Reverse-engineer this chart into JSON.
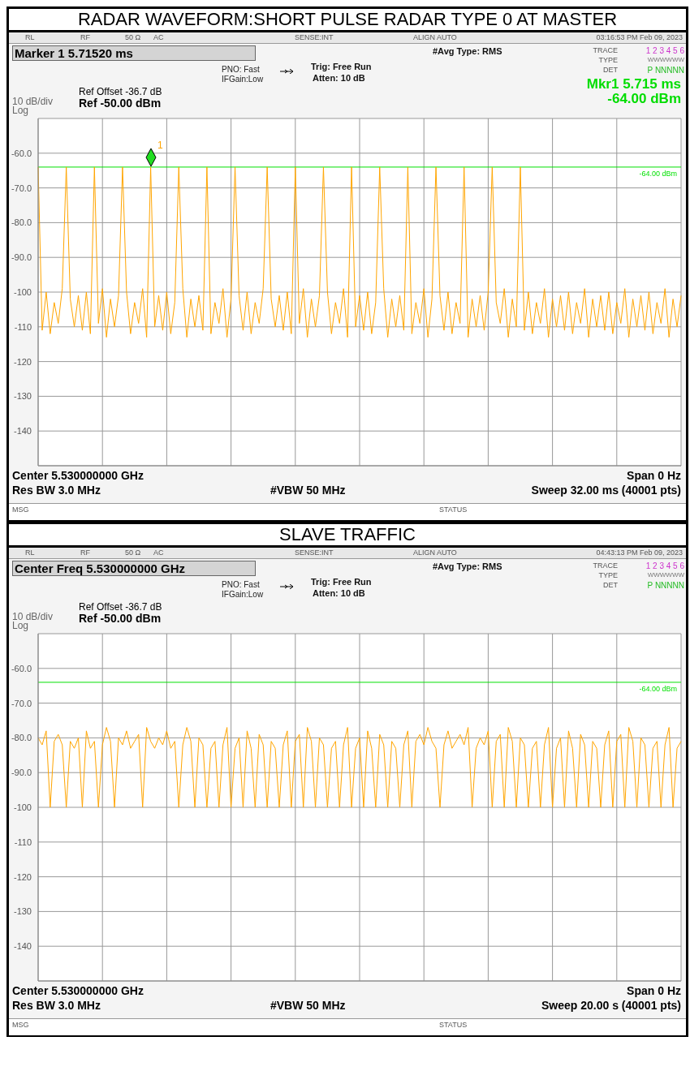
{
  "chart_data": [
    {
      "type": "line",
      "title": "RADAR WAVEFORM:SHORT PULSE RADAR TYPE 0 AT MASTER",
      "categories": [
        null,
        null,
        null,
        null,
        null,
        null,
        null,
        null,
        null,
        null,
        null,
        null,
        null,
        null,
        null,
        null,
        null,
        null,
        null,
        null,
        null,
        null,
        null,
        null,
        null,
        null,
        null,
        null,
        null,
        null,
        null,
        null,
        null,
        null,
        null,
        null,
        null,
        null,
        null,
        null,
        null,
        null,
        null,
        null,
        null,
        null,
        null,
        null,
        null,
        null,
        null,
        null,
        null,
        null,
        null,
        null,
        null,
        null,
        null,
        null,
        null,
        null,
        null,
        null,
        null,
        null,
        null,
        null,
        null,
        null,
        null,
        null,
        null,
        null,
        null,
        null,
        null,
        null,
        null,
        null,
        null,
        null,
        null,
        null,
        null,
        null,
        null,
        null,
        null,
        null,
        null,
        null,
        null,
        null,
        null,
        null,
        null,
        null,
        null,
        null,
        null,
        null,
        null,
        null,
        null,
        null,
        null,
        null,
        null,
        null,
        null,
        null,
        null,
        null,
        null,
        null,
        null,
        null,
        null,
        null,
        null,
        null,
        null,
        null,
        null,
        null,
        null,
        null,
        null,
        null,
        null,
        null,
        null,
        null,
        null,
        null,
        null,
        null,
        null,
        null,
        null,
        null,
        null,
        null,
        null,
        null,
        null,
        null,
        null,
        null,
        null,
        null,
        null,
        null,
        null,
        null,
        null,
        null,
        null,
        null,
        null
      ],
      "series": [
        {
          "color": "#ffa500",
          "values": [
            -64,
            -111,
            -100,
            -112,
            -103,
            -109,
            -99,
            -64,
            -102,
            -110,
            -101,
            -111,
            -100,
            -112,
            -64,
            -109,
            -99,
            -113,
            -102,
            -110,
            -101,
            -64,
            -100,
            -112,
            -103,
            -109,
            -99,
            -113,
            -64,
            -110,
            -101,
            -111,
            -100,
            -112,
            -103,
            -64,
            -99,
            -113,
            -102,
            -110,
            -101,
            -111,
            -64,
            -112,
            -103,
            -109,
            -99,
            -113,
            -102,
            -64,
            -101,
            -111,
            -100,
            -112,
            -103,
            -109,
            -99,
            -64,
            -102,
            -110,
            -101,
            -111,
            -100,
            -112,
            -64,
            -109,
            -99,
            -113,
            -102,
            -110,
            -101,
            -64,
            -100,
            -112,
            -103,
            -109,
            -99,
            -113,
            -64,
            -110,
            -101,
            -111,
            -100,
            -112,
            -103,
            -64,
            -99,
            -113,
            -102,
            -110,
            -101,
            -111,
            -64,
            -112,
            -103,
            -109,
            -99,
            -113,
            -102,
            -64,
            -101,
            -111,
            -100,
            -112,
            -103,
            -109,
            -64,
            -113,
            -102,
            -110,
            -101,
            -111,
            -100,
            -64,
            -103,
            -109,
            -99,
            -113,
            -102,
            -110,
            -64,
            -111,
            -100,
            -112,
            -103,
            -109,
            -99,
            -113,
            -102,
            -110,
            -101,
            -111,
            -100,
            -112,
            -103,
            -109,
            -99,
            -113,
            -102,
            -110,
            -101,
            -111,
            -100,
            -112,
            -103,
            -109,
            -99,
            -113,
            -102,
            -110,
            -101,
            -111,
            -100,
            -112,
            -103,
            -109,
            -99,
            -113,
            -102,
            -110,
            -101
          ]
        }
      ],
      "ylim": [
        -150,
        -50
      ],
      "yticks": [
        {
          "value": -50,
          "label": null
        },
        {
          "value": -60,
          "label": "-60.0"
        },
        {
          "value": -70,
          "label": "-70.0"
        },
        {
          "value": -80,
          "label": "-80.0"
        },
        {
          "value": -90,
          "label": "-90.0"
        },
        -100,
        -110,
        -120,
        -130,
        -140,
        {
          "value": -150,
          "label": null
        }
      ],
      "tick_labels": "y",
      "grid": true,
      "ref_lines": [
        {
          "axis": "y",
          "value": -64,
          "label": "-64.00 dBm",
          "color": "#00e000"
        }
      ],
      "annotations": [
        "RL",
        "RF",
        "50 Ω",
        "AC",
        "SENSE:INT",
        "ALIGN AUTO",
        "03:16:53 PM Feb 09, 2023",
        "Marker 1 5.71520 ms",
        "PNO: Fast",
        "IFGain:Low",
        "Trig: Free Run",
        "Atten: 10 dB",
        "#Avg Type: RMS",
        "TRACE",
        "1 2 3 4 5 6",
        "TYPE",
        "WWWWWW",
        "DET",
        "P NNNNN",
        "Ref Offset -36.7 dB",
        "Ref -50.00 dBm",
        "10 dB/div",
        "Log",
        "Mkr1 5.715 ms",
        "-64.00 dBm",
        "Center 5.530000000 GHz",
        "Span 0 Hz",
        "Res BW 3.0 MHz",
        "#VBW 50 MHz",
        "Sweep  32.00 ms (40001 pts)",
        "MSG",
        "STATUS",
        "1"
      ]
    },
    {
      "type": "line",
      "title": "SLAVE TRAFFIC",
      "categories": [
        null,
        null,
        null,
        null,
        null,
        null,
        null,
        null,
        null,
        null,
        null,
        null,
        null,
        null,
        null,
        null,
        null,
        null,
        null,
        null,
        null,
        null,
        null,
        null,
        null,
        null,
        null,
        null,
        null,
        null,
        null,
        null,
        null,
        null,
        null,
        null,
        null,
        null,
        null,
        null,
        null,
        null,
        null,
        null,
        null,
        null,
        null,
        null,
        null,
        null,
        null,
        null,
        null,
        null,
        null,
        null,
        null,
        null,
        null,
        null,
        null,
        null,
        null,
        null,
        null,
        null,
        null,
        null,
        null,
        null,
        null,
        null,
        null,
        null,
        null,
        null,
        null,
        null,
        null,
        null,
        null,
        null,
        null,
        null,
        null,
        null,
        null,
        null,
        null,
        null,
        null,
        null,
        null,
        null,
        null,
        null,
        null,
        null,
        null,
        null,
        null,
        null,
        null,
        null,
        null,
        null,
        null,
        null,
        null,
        null,
        null,
        null,
        null,
        null,
        null,
        null,
        null,
        null,
        null,
        null,
        null,
        null,
        null,
        null,
        null,
        null,
        null,
        null,
        null,
        null,
        null,
        null,
        null,
        null,
        null,
        null,
        null,
        null,
        null,
        null,
        null,
        null,
        null,
        null,
        null,
        null,
        null,
        null,
        null,
        null,
        null,
        null,
        null,
        null,
        null,
        null,
        null,
        null,
        null,
        null,
        null
      ],
      "series": [
        {
          "color": "#ffa500",
          "values": [
            -80,
            -82,
            -78,
            -100,
            -81,
            -79,
            -82,
            -100,
            -81,
            -83,
            -80,
            -100,
            -78,
            -83,
            -81,
            -100,
            -82,
            -77,
            -81,
            -100,
            -80,
            -82,
            -78,
            -83,
            -81,
            -79,
            -100,
            -77,
            -81,
            -83,
            -80,
            -82,
            -78,
            -83,
            -81,
            -100,
            -82,
            -77,
            -81,
            -100,
            -80,
            -82,
            -100,
            -83,
            -81,
            -100,
            -82,
            -77,
            -100,
            -83,
            -80,
            -100,
            -78,
            -83,
            -100,
            -79,
            -82,
            -100,
            -81,
            -83,
            -100,
            -82,
            -78,
            -100,
            -81,
            -79,
            -100,
            -77,
            -81,
            -100,
            -80,
            -82,
            -100,
            -83,
            -81,
            -100,
            -82,
            -77,
            -100,
            -83,
            -80,
            -100,
            -78,
            -83,
            -100,
            -79,
            -82,
            -100,
            -81,
            -83,
            -100,
            -82,
            -78,
            -100,
            -81,
            -79,
            -82,
            -77,
            -81,
            -83,
            -100,
            -82,
            -78,
            -83,
            -81,
            -79,
            -82,
            -77,
            -100,
            -83,
            -80,
            -82,
            -78,
            -100,
            -81,
            -79,
            -100,
            -77,
            -81,
            -100,
            -80,
            -82,
            -100,
            -83,
            -81,
            -100,
            -82,
            -77,
            -100,
            -83,
            -80,
            -100,
            -78,
            -83,
            -100,
            -79,
            -82,
            -100,
            -81,
            -83,
            -100,
            -82,
            -78,
            -100,
            -81,
            -79,
            -100,
            -77,
            -81,
            -100,
            -80,
            -82,
            -100,
            -83,
            -81,
            -100,
            -82,
            -77,
            -100,
            -83,
            -81
          ]
        }
      ],
      "ylim": [
        -150,
        -50
      ],
      "yticks": [
        {
          "value": -50,
          "label": null
        },
        {
          "value": -60,
          "label": "-60.0"
        },
        {
          "value": -70,
          "label": "-70.0"
        },
        {
          "value": -80,
          "label": "-80.0"
        },
        {
          "value": -90,
          "label": "-90.0"
        },
        -100,
        -110,
        -120,
        -130,
        -140,
        {
          "value": -150,
          "label": null
        }
      ],
      "tick_labels": "y",
      "grid": true,
      "ref_lines": [
        {
          "axis": "y",
          "value": -64,
          "label": "-64.00 dBm",
          "color": "#00e000"
        }
      ],
      "annotations": [
        "RL",
        "RF",
        "50 Ω",
        "AC",
        "SENSE:INT",
        "ALIGN AUTO",
        "04:43:13 PM Feb 09, 2023",
        "Center Freq 5.530000000 GHz",
        "PNO: Fast",
        "IFGain:Low",
        "Trig: Free Run",
        "Atten: 10 dB",
        "#Avg Type: RMS",
        "TRACE",
        "1 2 3 4 5 6",
        "TYPE",
        "WWWWWW",
        "DET",
        "P NNNNN",
        "Ref Offset -36.7 dB",
        "Ref -50.00 dBm",
        "10 dB/div",
        "Log",
        "Center 5.530000000 GHz",
        "Span 0 Hz",
        "Res BW 3.0 MHz",
        "#VBW 50 MHz",
        "Sweep  20.00 s (40001 pts)",
        "MSG",
        "STATUS"
      ]
    }
  ]
}
